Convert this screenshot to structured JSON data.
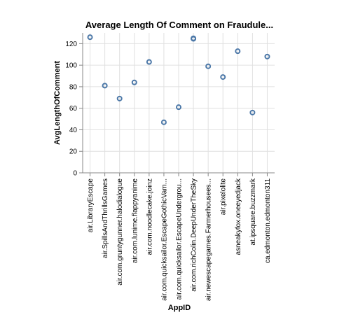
{
  "chart_data": {
    "type": "scatter",
    "title": "Average Length Of Comment on Fraudule...",
    "xlabel": "AppID",
    "ylabel": "AvgLengthOfComment",
    "ylim": [
      0,
      130
    ],
    "yticks": [
      0,
      20,
      40,
      60,
      80,
      100,
      120
    ],
    "grid": true,
    "point_color": "#4c78a8",
    "categories": [
      "air.LibraryEscape",
      "air.SpillsAndThrillsGames",
      "air.com.gruntygunner.halodialogue",
      "air.com.lunime.flappyanime",
      "air.com.noodlecake.joinz",
      "air.com.quicksailor.EscapeGothicVam...",
      "air.com.quicksailor.EscapeUndergrou...",
      "air.com.richColin.DeepUnderTheSky",
      "air.newescapegames.Farmerhousees...",
      "air.pixelolite",
      "asneakyfox.oneeyedjack",
      "at.ipsquare.buzzmark",
      "ca.edmonton.edmonton311"
    ],
    "series": [
      {
        "points": [
          {
            "category": "air.LibraryEscape",
            "y": 126
          },
          {
            "category": "air.SpillsAndThrillsGames",
            "y": 81
          },
          {
            "category": "air.com.gruntygunner.halodialogue",
            "y": 69
          },
          {
            "category": "air.com.lunime.flappyanime",
            "y": 84
          },
          {
            "category": "air.com.noodlecake.joinz",
            "y": 103
          },
          {
            "category": "air.com.quicksailor.EscapeGothicVam...",
            "y": 47
          },
          {
            "category": "air.com.quicksailor.EscapeUndergrou...",
            "y": 61
          },
          {
            "category": "air.com.richColin.DeepUnderTheSky",
            "y": 125
          },
          {
            "category": "air.com.richColin.DeepUnderTheSky",
            "y": 124.5
          },
          {
            "category": "air.newescapegames.Farmerhousees...",
            "y": 99
          },
          {
            "category": "air.pixelolite",
            "y": 89
          },
          {
            "category": "asneakyfox.oneeyedjack",
            "y": 113
          },
          {
            "category": "at.ipsquare.buzzmark",
            "y": 56
          },
          {
            "category": "ca.edmonton.edmonton311",
            "y": 108
          }
        ]
      }
    ]
  }
}
